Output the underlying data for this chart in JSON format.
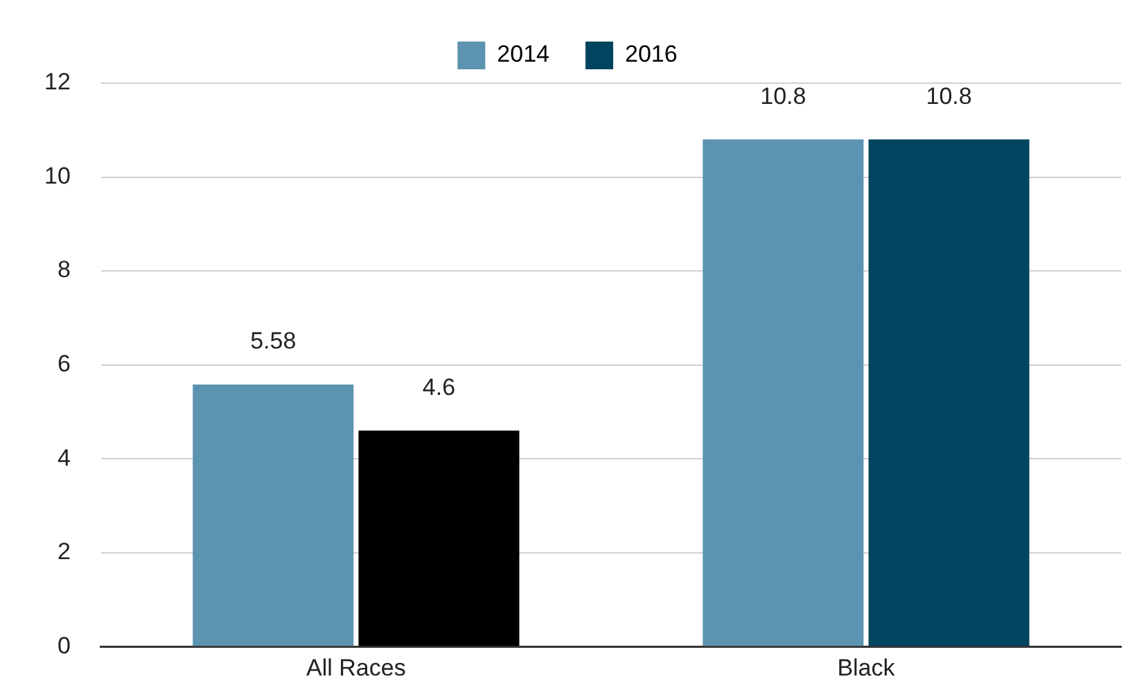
{
  "chart_data": {
    "type": "bar",
    "categories": [
      "All Races",
      "Black"
    ],
    "series": [
      {
        "name": "2014",
        "color": "#5b93b0",
        "values": [
          5.58,
          10.8
        ]
      },
      {
        "name": "2016",
        "color": "#01445f",
        "colors": [
          "#000000",
          "#01445f"
        ],
        "values": [
          4.6,
          10.8
        ]
      }
    ],
    "ylim": [
      0,
      12
    ],
    "yticks": [
      0,
      2,
      4,
      6,
      8,
      10,
      12
    ],
    "grid": "y",
    "legend": "top",
    "data_labels": true
  }
}
